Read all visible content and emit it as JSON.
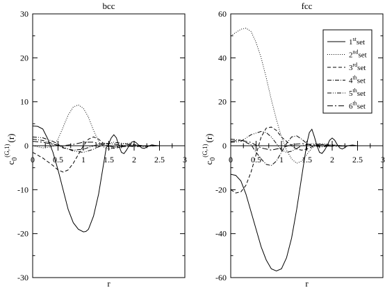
{
  "chart_data": [
    {
      "type": "line",
      "title": "bcc",
      "xlabel": "r",
      "ylabel_main": "c",
      "ylabel_sub": "0",
      "ylabel_sup": "(G,1)",
      "ylabel_arg": "(r)",
      "xlim": [
        0,
        3
      ],
      "ylim": [
        -30,
        30
      ],
      "xticks": [
        "0",
        "0.5",
        "1",
        "1.5",
        "2",
        "2.5",
        "3"
      ],
      "xtick_values": [
        0,
        0.5,
        1,
        1.5,
        2,
        2.5,
        3
      ],
      "yticks": [
        "-30",
        "-20",
        "-10",
        "0",
        "10",
        "20",
        "30"
      ],
      "ytick_values": [
        -30,
        -20,
        -10,
        0,
        10,
        20,
        30
      ],
      "grid": false,
      "series": [
        {
          "name": "1st set",
          "dash": "",
          "x": [
            0,
            0.1,
            0.2,
            0.3,
            0.4,
            0.5,
            0.6,
            0.7,
            0.8,
            0.9,
            1.0,
            1.05,
            1.1,
            1.2,
            1.3,
            1.4,
            1.45,
            1.5,
            1.55,
            1.6,
            1.65,
            1.7,
            1.75,
            1.8,
            1.85,
            1.9,
            1.95,
            2.0,
            2.05,
            2.1,
            2.15,
            2.2,
            2.25,
            2.3,
            2.35,
            2.4,
            2.5,
            3.0
          ],
          "y": [
            4.5,
            4.4,
            3.8,
            1.5,
            -1.5,
            -5.5,
            -10,
            -14.5,
            -17.5,
            -19,
            -19.6,
            -19.5,
            -19,
            -16,
            -11,
            -4,
            -0.5,
            0.5,
            1.8,
            2.5,
            1.8,
            0,
            -1.5,
            -1.8,
            -1.0,
            0,
            0.8,
            1.0,
            0.6,
            0,
            -0.5,
            -0.6,
            -0.3,
            0,
            0.2,
            0.1,
            0,
            0
          ]
        },
        {
          "name": "2nd set",
          "dash": "1,2",
          "x": [
            0,
            0.2,
            0.4,
            0.5,
            0.6,
            0.7,
            0.8,
            0.9,
            1.0,
            1.1,
            1.2,
            1.3,
            1.4,
            1.5,
            1.6,
            1.7,
            1.8,
            1.9,
            2.0,
            2.1,
            2.2,
            2.3,
            2.5,
            3.0
          ],
          "y": [
            0,
            -0.5,
            -0.2,
            1.5,
            4.2,
            7.0,
            8.8,
            9.3,
            8.5,
            6.5,
            3.5,
            1.0,
            -0.3,
            -0.8,
            -0.5,
            0,
            0.5,
            0.6,
            0.3,
            0,
            -0.2,
            -0.1,
            0,
            0
          ]
        },
        {
          "name": "3rd set",
          "dash": "5,3",
          "x": [
            0,
            0.2,
            0.4,
            0.5,
            0.6,
            0.7,
            0.8,
            0.9,
            1.0,
            1.1,
            1.2,
            1.3,
            1.4,
            1.5,
            1.6,
            1.7,
            1.8,
            1.9,
            2.0,
            2.2,
            2.5,
            3.0
          ],
          "y": [
            -1.5,
            -2.8,
            -4.5,
            -5.5,
            -6.0,
            -5.5,
            -4.0,
            -2.0,
            0,
            1.5,
            2.0,
            1.5,
            0.5,
            -0.3,
            -0.6,
            -0.4,
            0,
            0.3,
            0.2,
            0,
            0,
            0
          ]
        },
        {
          "name": "4th set",
          "dash": "6,2,1,2",
          "x": [
            0,
            0.2,
            0.4,
            0.6,
            0.8,
            1.0,
            1.2,
            1.4,
            1.6,
            1.8,
            2.0,
            2.5,
            3.0
          ],
          "y": [
            1.5,
            1.2,
            0.5,
            -0.5,
            -1.0,
            -0.8,
            0,
            0.6,
            0.4,
            0,
            -0.2,
            0,
            0
          ]
        },
        {
          "name": "5th set",
          "dash": "6,2,1,2,1,2",
          "x": [
            0,
            0.2,
            0.4,
            0.6,
            0.8,
            1.0,
            1.2,
            1.4,
            1.6,
            1.8,
            2.0,
            2.5,
            3.0
          ],
          "y": [
            2.0,
            1.8,
            1.0,
            -0.3,
            -1.2,
            -1.5,
            -0.8,
            0.3,
            0.8,
            0.5,
            0,
            0,
            0
          ]
        },
        {
          "name": "6th set",
          "dash": "8,3,2,3",
          "x": [
            0,
            0.2,
            0.4,
            0.6,
            0.8,
            1.0,
            1.2,
            1.4,
            1.6,
            1.8,
            2.0,
            2.5,
            3.0
          ],
          "y": [
            1.0,
            0.8,
            0.3,
            0,
            0.3,
            0.8,
            0.8,
            0.2,
            -0.3,
            -0.2,
            0,
            0,
            0
          ]
        }
      ]
    },
    {
      "type": "line",
      "title": "fcc",
      "xlabel": "r",
      "ylabel_main": "c",
      "ylabel_sub": "0",
      "ylabel_sup": "(G,1)",
      "ylabel_arg": "(r)",
      "xlim": [
        0,
        3
      ],
      "ylim": [
        -60,
        60
      ],
      "xticks": [
        "0",
        "0.5",
        "1",
        "1.5",
        "2",
        "2.5",
        "3"
      ],
      "xtick_values": [
        0,
        0.5,
        1,
        1.5,
        2,
        2.5,
        3
      ],
      "yticks": [
        "-60",
        "-40",
        "-20",
        "0",
        "20",
        "40",
        "60"
      ],
      "ytick_values": [
        -60,
        -40,
        -20,
        0,
        20,
        40,
        60
      ],
      "grid": false,
      "legend_position": "top-right",
      "series": [
        {
          "name": "1st set",
          "dash": "",
          "x": [
            0,
            0.1,
            0.2,
            0.3,
            0.4,
            0.5,
            0.6,
            0.7,
            0.8,
            0.9,
            1.0,
            1.1,
            1.2,
            1.3,
            1.4,
            1.5,
            1.55,
            1.6,
            1.65,
            1.7,
            1.75,
            1.8,
            1.85,
            1.9,
            1.95,
            2.0,
            2.05,
            2.1,
            2.15,
            2.2,
            2.25,
            2.3,
            2.4,
            2.5,
            3.0
          ],
          "y": [
            -13,
            -13.5,
            -16,
            -22,
            -30,
            -38,
            -46,
            -52,
            -56,
            -57,
            -56,
            -51,
            -42,
            -29,
            -14,
            1,
            6,
            7.5,
            4,
            0,
            -3,
            -3.5,
            -2,
            0,
            2.5,
            3.5,
            2.5,
            0.5,
            -1,
            -1.5,
            -0.8,
            0,
            0.3,
            0,
            0
          ]
        },
        {
          "name": "2nd set",
          "dash": "1,2",
          "x": [
            0,
            0.1,
            0.2,
            0.3,
            0.4,
            0.5,
            0.6,
            0.7,
            0.8,
            0.9,
            1.0,
            1.1,
            1.2,
            1.3,
            1.4,
            1.5,
            1.6,
            1.7,
            1.8,
            2.0,
            2.2,
            2.5,
            3.0
          ],
          "y": [
            50,
            51.5,
            53,
            53.5,
            52,
            47,
            40,
            31,
            21,
            12,
            4,
            -2,
            -6,
            -8,
            -7,
            -4,
            -1,
            0.5,
            1,
            0.5,
            0,
            0,
            0
          ]
        },
        {
          "name": "3rd set",
          "dash": "5,3",
          "x": [
            0,
            0.1,
            0.2,
            0.3,
            0.4,
            0.5,
            0.6,
            0.7,
            0.8,
            0.9,
            1.0,
            1.1,
            1.2,
            1.3,
            1.4,
            1.5,
            1.6,
            1.7,
            1.8,
            2.0,
            2.2,
            2.5,
            3.0
          ],
          "y": [
            -20,
            -21.5,
            -21,
            -18,
            -12,
            -4,
            4,
            8,
            8.5,
            7,
            4,
            2,
            0,
            -1.5,
            -2,
            -1.5,
            -0.5,
            0.3,
            0.5,
            0.2,
            0,
            0,
            0
          ]
        },
        {
          "name": "4th set",
          "dash": "6,2,1,2",
          "x": [
            0,
            0.2,
            0.4,
            0.5,
            0.6,
            0.7,
            0.8,
            0.9,
            1.0,
            1.1,
            1.2,
            1.3,
            1.4,
            1.5,
            1.6,
            1.8,
            2.0,
            2.5,
            3.0
          ],
          "y": [
            3,
            2.5,
            0.5,
            -3,
            -6,
            -8.5,
            -9,
            -7,
            -3,
            1,
            4,
            4.5,
            3,
            1,
            0,
            -0.5,
            0,
            0,
            0
          ]
        },
        {
          "name": "5th set",
          "dash": "6,2,1,2,1,2",
          "x": [
            0,
            0.2,
            0.4,
            0.6,
            0.7,
            0.8,
            0.9,
            1.0,
            1.1,
            1.2,
            1.4,
            1.6,
            1.8,
            2.0,
            2.5,
            3.0
          ],
          "y": [
            1.5,
            2,
            5,
            6.5,
            6,
            4,
            1,
            -2,
            -3,
            -2.5,
            0,
            1,
            0.5,
            0,
            0,
            0
          ]
        },
        {
          "name": "6th set",
          "dash": "8,3,2,3",
          "x": [
            0,
            0.2,
            0.4,
            0.6,
            0.8,
            1.0,
            1.2,
            1.4,
            1.6,
            1.8,
            2.0,
            2.5,
            3.0
          ],
          "y": [
            2,
            2.5,
            1.5,
            -1,
            -2,
            -1,
            0.5,
            1,
            0.5,
            0,
            -0.2,
            0,
            0
          ]
        }
      ]
    }
  ],
  "legend": {
    "entries": [
      {
        "base": "1",
        "sup": "st",
        "tail": "set"
      },
      {
        "base": "2",
        "sup": "nd",
        "tail": "set"
      },
      {
        "base": "3",
        "sup": "rd",
        "tail": "set"
      },
      {
        "base": "4",
        "sup": "th",
        "tail": "set"
      },
      {
        "base": "5",
        "sup": "th",
        "tail": "set"
      },
      {
        "base": "6",
        "sup": "th",
        "tail": "set"
      }
    ]
  }
}
